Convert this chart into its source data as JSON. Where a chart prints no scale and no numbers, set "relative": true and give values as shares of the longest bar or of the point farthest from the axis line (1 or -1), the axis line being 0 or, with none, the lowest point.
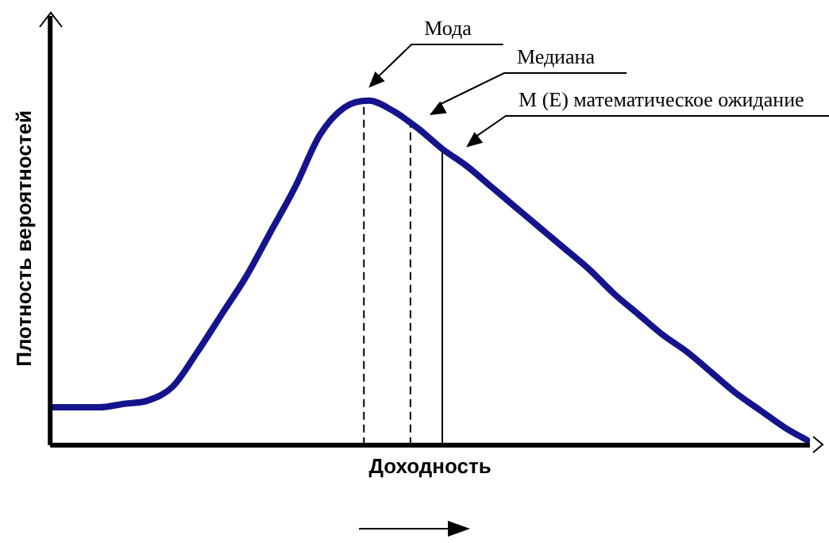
{
  "chart_data": {
    "type": "line",
    "relative": true,
    "xlabel": "Доходность",
    "ylabel": "Плотность вероятностей",
    "categories": [
      null,
      null,
      null,
      null,
      null,
      null,
      null,
      null,
      null,
      null,
      null,
      null,
      null,
      null,
      null,
      null,
      null,
      null,
      null,
      null,
      null,
      null,
      null,
      null,
      null,
      null,
      null,
      null,
      null,
      null,
      null,
      null
    ],
    "series": [
      {
        "color": "#14148c",
        "values": [
          0.11,
          0.11,
          0.11,
          0.12,
          0.13,
          0.17,
          0.27,
          0.38,
          0.49,
          0.62,
          0.75,
          0.9,
          0.98,
          1,
          0.97,
          0.92,
          0.86,
          0.81,
          0.75,
          0.69,
          0.63,
          0.57,
          0.51,
          0.44,
          0.38,
          0.32,
          0.27,
          0.21,
          0.15,
          0.1,
          0.05,
          0.01
        ]
      }
    ],
    "annotations": [
      "Мода",
      "Медиана",
      "М (Е) математическое ожидание"
    ],
    "grid": false,
    "legend": false,
    "marker": "none",
    "line_style": "solid",
    "tick_labels": false
  }
}
